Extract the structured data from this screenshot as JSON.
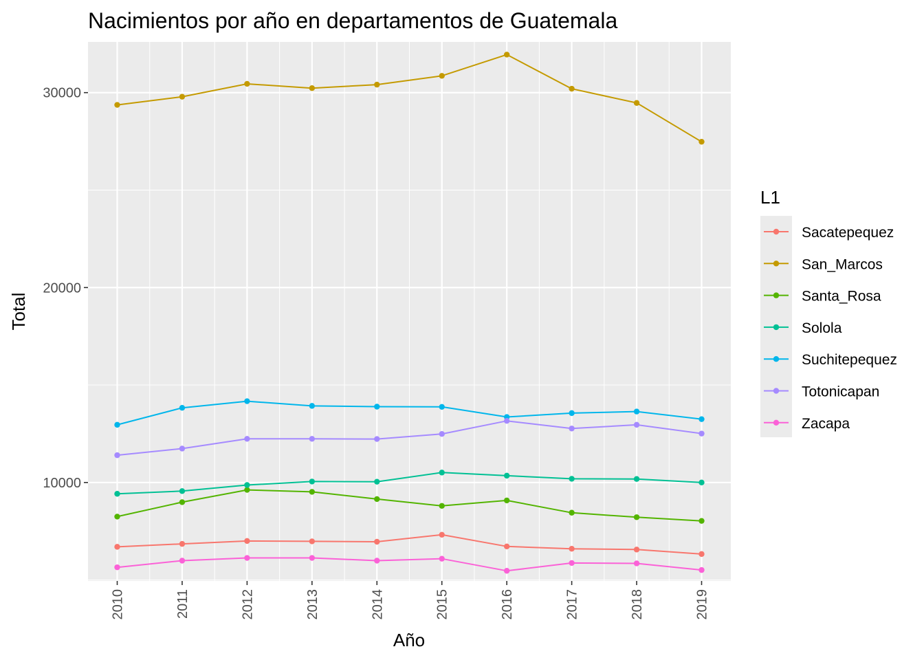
{
  "chart_data": {
    "type": "line",
    "title": "Nacimientos por año en departamentos de Guatemala",
    "xlabel": "Año",
    "ylabel": "Total",
    "x": [
      2010,
      2011,
      2012,
      2013,
      2014,
      2015,
      2016,
      2017,
      2018,
      2019
    ],
    "ylim": [
      4950,
      32600
    ],
    "yticks": [
      10000,
      20000,
      30000
    ],
    "grid": true,
    "legend": {
      "title": "L1",
      "position": "right"
    },
    "series": [
      {
        "name": "Sacatepequez",
        "color": "#F8766D",
        "values": [
          6700,
          6850,
          7000,
          6980,
          6960,
          7320,
          6720,
          6600,
          6560,
          6330
        ]
      },
      {
        "name": "San_Marcos",
        "color": "#C49A00",
        "values": [
          29370,
          29790,
          30450,
          30230,
          30410,
          30860,
          31950,
          30200,
          29470,
          27480
        ]
      },
      {
        "name": "Santa_Rosa",
        "color": "#53B400",
        "values": [
          8250,
          8990,
          9620,
          9520,
          9150,
          8800,
          9080,
          8450,
          8220,
          8030
        ]
      },
      {
        "name": "Solola",
        "color": "#00C094",
        "values": [
          9420,
          9560,
          9870,
          10050,
          10040,
          10510,
          10350,
          10190,
          10180,
          10000
        ]
      },
      {
        "name": "Suchitepequez",
        "color": "#00B6EB",
        "values": [
          12960,
          13830,
          14170,
          13930,
          13890,
          13880,
          13360,
          13560,
          13640,
          13250
        ]
      },
      {
        "name": "Totonicapan",
        "color": "#A58AFF",
        "values": [
          11400,
          11740,
          12240,
          12240,
          12230,
          12490,
          13160,
          12770,
          12960,
          12510
        ]
      },
      {
        "name": "Zacapa",
        "color": "#FB61D7",
        "values": [
          5650,
          5990,
          6130,
          6130,
          5990,
          6090,
          5470,
          5870,
          5850,
          5510
        ]
      }
    ]
  }
}
